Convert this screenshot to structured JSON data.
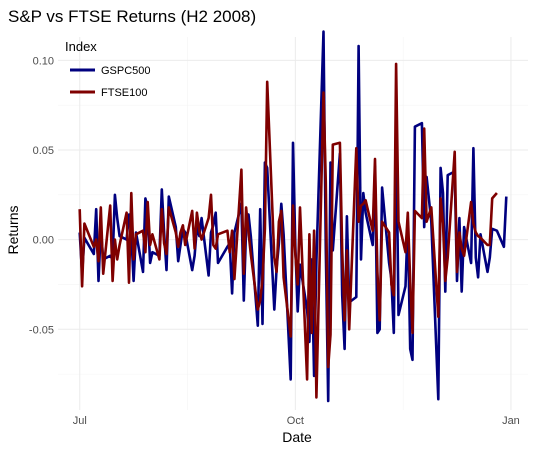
{
  "chart_data": {
    "type": "line",
    "title": "S&P vs FTSE Returns (H2 2008)",
    "xlabel": "Date",
    "ylabel": "Returns",
    "x_range": [
      "2008-06-30",
      "2008-12-31"
    ],
    "ylim": [
      -0.095,
      0.113
    ],
    "x_ticks": [
      {
        "date": "2008-07-01",
        "label": "Jul"
      },
      {
        "date": "2008-10-01",
        "label": "Oct"
      },
      {
        "date": "2009-01-01",
        "label": "Jan"
      }
    ],
    "x_minor_ticks": [
      "2008-08-16",
      "2008-11-16"
    ],
    "y_ticks": [
      -0.05,
      0.0,
      0.05,
      0.1
    ],
    "y_tick_labels": [
      "-0.05",
      "0.00",
      "0.05",
      "0.10"
    ],
    "y_minor_ticks": [
      -0.075,
      -0.025,
      0.025,
      0.075
    ],
    "grid": true,
    "legend": {
      "title": "Index",
      "placement": "top-left"
    },
    "series": [
      {
        "name": "GSPC500",
        "color": "#00007f",
        "points": [
          [
            "2008-07-01",
            0.004
          ],
          [
            "2008-07-02",
            -0.019
          ],
          [
            "2008-07-03",
            0.001
          ],
          [
            "2008-07-07",
            -0.008
          ],
          [
            "2008-07-08",
            0.017
          ],
          [
            "2008-07-09",
            -0.023
          ],
          [
            "2008-07-10",
            0.006
          ],
          [
            "2008-07-11",
            -0.011
          ],
          [
            "2008-07-14",
            -0.009
          ],
          [
            "2008-07-15",
            -0.011
          ],
          [
            "2008-07-16",
            0.025
          ],
          [
            "2008-07-17",
            0.012
          ],
          [
            "2008-07-18",
            0.002
          ],
          [
            "2008-07-21",
            0.0
          ],
          [
            "2008-07-22",
            0.014
          ],
          [
            "2008-07-23",
            0.003
          ],
          [
            "2008-07-24",
            -0.023
          ],
          [
            "2008-07-25",
            0.004
          ],
          [
            "2008-07-28",
            -0.018
          ],
          [
            "2008-07-29",
            0.023
          ],
          [
            "2008-07-30",
            0.017
          ],
          [
            "2008-07-31",
            -0.013
          ],
          [
            "2008-08-01",
            -0.007
          ],
          [
            "2008-08-04",
            -0.009
          ],
          [
            "2008-08-05",
            0.028
          ],
          [
            "2008-08-06",
            0.004
          ],
          [
            "2008-08-07",
            -0.017
          ],
          [
            "2008-08-08",
            0.024
          ],
          [
            "2008-08-11",
            0.007
          ],
          [
            "2008-08-12",
            -0.012
          ],
          [
            "2008-08-13",
            -0.003
          ],
          [
            "2008-08-14",
            0.006
          ],
          [
            "2008-08-15",
            0.004
          ],
          [
            "2008-08-18",
            -0.017
          ],
          [
            "2008-08-19",
            -0.009
          ],
          [
            "2008-08-20",
            0.007
          ],
          [
            "2008-08-21",
            0.002
          ],
          [
            "2008-08-22",
            0.012
          ],
          [
            "2008-08-25",
            -0.02
          ],
          [
            "2008-08-26",
            0.004
          ],
          [
            "2008-08-27",
            0.008
          ],
          [
            "2008-08-28",
            0.015
          ],
          [
            "2008-08-29",
            -0.013
          ],
          [
            "2008-09-02",
            -0.004
          ],
          [
            "2008-09-03",
            -0.002
          ],
          [
            "2008-09-04",
            -0.03
          ],
          [
            "2008-09-05",
            0.004
          ],
          [
            "2008-09-08",
            0.02
          ],
          [
            "2008-09-09",
            -0.034
          ],
          [
            "2008-09-10",
            0.006
          ],
          [
            "2008-09-11",
            0.014
          ],
          [
            "2008-09-12",
            0.002
          ],
          [
            "2008-09-15",
            -0.048
          ],
          [
            "2008-09-16",
            0.017
          ],
          [
            "2008-09-17",
            -0.047
          ],
          [
            "2008-09-18",
            0.043
          ],
          [
            "2008-09-19",
            0.04
          ],
          [
            "2008-09-22",
            -0.039
          ],
          [
            "2008-09-23",
            -0.016
          ],
          [
            "2008-09-24",
            -0.002
          ],
          [
            "2008-09-25",
            0.02
          ],
          [
            "2008-09-26",
            0.003
          ],
          [
            "2008-09-29",
            -0.078
          ],
          [
            "2008-09-30",
            0.054
          ],
          [
            "2008-10-01",
            -0.003
          ],
          [
            "2008-10-02",
            -0.04
          ],
          [
            "2008-10-03",
            -0.014
          ],
          [
            "2008-10-06",
            -0.039
          ],
          [
            "2008-10-07",
            -0.057
          ],
          [
            "2008-10-08",
            -0.011
          ],
          [
            "2008-10-09",
            -0.076
          ],
          [
            "2008-10-10",
            -0.012
          ],
          [
            "2008-10-13",
            0.116
          ],
          [
            "2008-10-14",
            -0.005
          ],
          [
            "2008-10-15",
            -0.09
          ],
          [
            "2008-10-16",
            0.043
          ],
          [
            "2008-10-17",
            -0.006
          ],
          [
            "2008-10-20",
            0.048
          ],
          [
            "2008-10-21",
            -0.031
          ],
          [
            "2008-10-22",
            -0.061
          ],
          [
            "2008-10-23",
            0.013
          ],
          [
            "2008-10-24",
            -0.035
          ],
          [
            "2008-10-27",
            -0.032
          ],
          [
            "2008-10-28",
            0.108
          ],
          [
            "2008-10-29",
            -0.011
          ],
          [
            "2008-10-30",
            0.026
          ],
          [
            "2008-10-31",
            0.015
          ],
          [
            "2008-11-03",
            -0.003
          ],
          [
            "2008-11-04",
            0.041
          ],
          [
            "2008-11-05",
            -0.052
          ],
          [
            "2008-11-06",
            -0.05
          ],
          [
            "2008-11-07",
            0.029
          ],
          [
            "2008-11-10",
            -0.013
          ],
          [
            "2008-11-11",
            -0.022
          ],
          [
            "2008-11-12",
            -0.052
          ],
          [
            "2008-11-13",
            0.069
          ],
          [
            "2008-11-14",
            -0.042
          ],
          [
            "2008-11-17",
            -0.026
          ],
          [
            "2008-11-18",
            0.01
          ],
          [
            "2008-11-19",
            -0.061
          ],
          [
            "2008-11-20",
            -0.067
          ],
          [
            "2008-11-21",
            0.063
          ],
          [
            "2008-11-24",
            0.065
          ],
          [
            "2008-11-25",
            0.007
          ],
          [
            "2008-11-26",
            0.035
          ],
          [
            "2008-11-28",
            0.01
          ],
          [
            "2008-12-01",
            -0.089
          ],
          [
            "2008-12-02",
            0.04
          ],
          [
            "2008-12-03",
            0.026
          ],
          [
            "2008-12-04",
            -0.029
          ],
          [
            "2008-12-05",
            0.036
          ],
          [
            "2008-12-08",
            0.038
          ],
          [
            "2008-12-09",
            -0.023
          ],
          [
            "2008-12-10",
            0.012
          ],
          [
            "2008-12-11",
            -0.029
          ],
          [
            "2008-12-12",
            0.007
          ],
          [
            "2008-12-15",
            -0.013
          ],
          [
            "2008-12-16",
            0.051
          ],
          [
            "2008-12-17",
            -0.01
          ],
          [
            "2008-12-18",
            -0.021
          ],
          [
            "2008-12-19",
            0.003
          ],
          [
            "2008-12-22",
            -0.018
          ],
          [
            "2008-12-23",
            -0.01
          ],
          [
            "2008-12-24",
            0.006
          ],
          [
            "2008-12-26",
            0.005
          ],
          [
            "2008-12-29",
            -0.004
          ],
          [
            "2008-12-30",
            0.024
          ]
        ]
      },
      {
        "name": "FTSE100",
        "color": "#7f0000",
        "points": [
          [
            "2008-07-01",
            0.017
          ],
          [
            "2008-07-02",
            -0.026
          ],
          [
            "2008-07-03",
            0.009
          ],
          [
            "2008-07-07",
            -0.004
          ],
          [
            "2008-07-08",
            0.0
          ],
          [
            "2008-07-09",
            -0.012
          ],
          [
            "2008-07-10",
            0.018
          ],
          [
            "2008-07-11",
            -0.019
          ],
          [
            "2008-07-14",
            0.019
          ],
          [
            "2008-07-15",
            -0.023
          ],
          [
            "2008-07-16",
            0.0
          ],
          [
            "2008-07-17",
            -0.011
          ],
          [
            "2008-07-18",
            -0.003
          ],
          [
            "2008-07-21",
            0.015
          ],
          [
            "2008-07-22",
            -0.024
          ],
          [
            "2008-07-23",
            0.026
          ],
          [
            "2008-07-24",
            -0.011
          ],
          [
            "2008-07-25",
            0.003
          ],
          [
            "2008-07-28",
            0.005
          ],
          [
            "2008-07-29",
            -0.007
          ],
          [
            "2008-07-30",
            0.021
          ],
          [
            "2008-07-31",
            -0.003
          ],
          [
            "2008-08-01",
            0.003
          ],
          [
            "2008-08-04",
            -0.011
          ],
          [
            "2008-08-05",
            0.017
          ],
          [
            "2008-08-06",
            -0.002
          ],
          [
            "2008-08-07",
            -0.008
          ],
          [
            "2008-08-08",
            0.018
          ],
          [
            "2008-08-11",
            0.004
          ],
          [
            "2008-08-12",
            -0.004
          ],
          [
            "2008-08-13",
            0.004
          ],
          [
            "2008-08-14",
            0.008
          ],
          [
            "2008-08-15",
            -0.003
          ],
          [
            "2008-08-18",
            0.016
          ],
          [
            "2008-08-19",
            -0.005
          ],
          [
            "2008-08-20",
            0.015
          ],
          [
            "2008-08-21",
            0.005
          ],
          [
            "2008-08-22",
            0.0
          ],
          [
            "2008-08-25",
            0.012
          ],
          [
            "2008-08-26",
            0.025
          ],
          [
            "2008-08-27",
            -0.003
          ],
          [
            "2008-08-28",
            -0.005
          ],
          [
            "2008-08-29",
            0.003
          ],
          [
            "2008-09-02",
            0.005
          ],
          [
            "2008-09-03",
            -0.007
          ],
          [
            "2008-09-04",
            0.005
          ],
          [
            "2008-09-05",
            -0.022
          ],
          [
            "2008-09-08",
            0.039
          ],
          [
            "2008-09-09",
            -0.019
          ],
          [
            "2008-09-10",
            0.018
          ],
          [
            "2008-09-11",
            0.004
          ],
          [
            "2008-09-12",
            -0.008
          ],
          [
            "2008-09-15",
            -0.039
          ],
          [
            "2008-09-16",
            -0.034
          ],
          [
            "2008-09-17",
            -0.022
          ],
          [
            "2008-09-18",
            0.006
          ],
          [
            "2008-09-19",
            0.088
          ],
          [
            "2008-09-22",
            -0.01
          ],
          [
            "2008-09-23",
            -0.018
          ],
          [
            "2008-09-24",
            0.01
          ],
          [
            "2008-09-25",
            0.016
          ],
          [
            "2008-09-26",
            -0.021
          ],
          [
            "2008-09-29",
            -0.054
          ],
          [
            "2008-09-30",
            0.019
          ],
          [
            "2008-10-01",
            -0.008
          ],
          [
            "2008-10-02",
            -0.025
          ],
          [
            "2008-10-03",
            0.018
          ],
          [
            "2008-10-06",
            -0.078
          ],
          [
            "2008-10-07",
            0.003
          ],
          [
            "2008-10-08",
            -0.052
          ],
          [
            "2008-10-09",
            0.005
          ],
          [
            "2008-10-10",
            -0.088
          ],
          [
            "2008-10-13",
            0.082
          ],
          [
            "2008-10-14",
            0.032
          ],
          [
            "2008-10-15",
            -0.071
          ],
          [
            "2008-10-16",
            -0.053
          ],
          [
            "2008-10-17",
            0.053
          ],
          [
            "2008-10-20",
            0.054
          ],
          [
            "2008-10-21",
            -0.006
          ],
          [
            "2008-10-22",
            -0.045
          ],
          [
            "2008-10-23",
            -0.006
          ],
          [
            "2008-10-24",
            -0.05
          ],
          [
            "2008-10-27",
            0.051
          ],
          [
            "2008-10-28",
            0.01
          ],
          [
            "2008-10-29",
            0.019
          ],
          [
            "2008-10-30",
            0.02
          ],
          [
            "2008-10-31",
            0.022
          ],
          [
            "2008-11-03",
            0.005
          ],
          [
            "2008-11-04",
            0.045
          ],
          [
            "2008-11-05",
            -0.018
          ],
          [
            "2008-11-06",
            -0.045
          ],
          [
            "2008-11-07",
            0.01
          ],
          [
            "2008-11-10",
            0.004
          ],
          [
            "2008-11-11",
            -0.025
          ],
          [
            "2008-11-12",
            -0.031
          ],
          [
            "2008-11-13",
            0.098
          ],
          [
            "2008-11-14",
            0.01
          ],
          [
            "2008-11-17",
            -0.007
          ],
          [
            "2008-11-18",
            0.015
          ],
          [
            "2008-11-19",
            -0.023
          ],
          [
            "2008-11-20",
            -0.052
          ],
          [
            "2008-11-21",
            0.016
          ],
          [
            "2008-11-24",
            0.012
          ],
          [
            "2008-11-25",
            0.062
          ],
          [
            "2008-11-26",
            0.01
          ],
          [
            "2008-11-28",
            0.018
          ],
          [
            "2008-12-01",
            -0.043
          ],
          [
            "2008-12-02",
            0.023
          ],
          [
            "2008-12-03",
            0.009
          ],
          [
            "2008-12-04",
            -0.023
          ],
          [
            "2008-12-05",
            -0.01
          ],
          [
            "2008-12-08",
            0.049
          ],
          [
            "2008-12-09",
            -0.018
          ],
          [
            "2008-12-10",
            0.004
          ],
          [
            "2008-12-11",
            -0.005
          ],
          [
            "2008-12-12",
            -0.009
          ],
          [
            "2008-12-15",
            0.021
          ],
          [
            "2008-12-16",
            0.009
          ],
          [
            "2008-12-17",
            0.004
          ],
          [
            "2008-12-18",
            0.002
          ],
          [
            "2008-12-19",
            0.001
          ],
          [
            "2008-12-22",
            -0.003
          ],
          [
            "2008-12-23",
            -0.003
          ],
          [
            "2008-12-24",
            0.023
          ],
          [
            "2008-12-26",
            0.026
          ]
        ]
      }
    ]
  }
}
